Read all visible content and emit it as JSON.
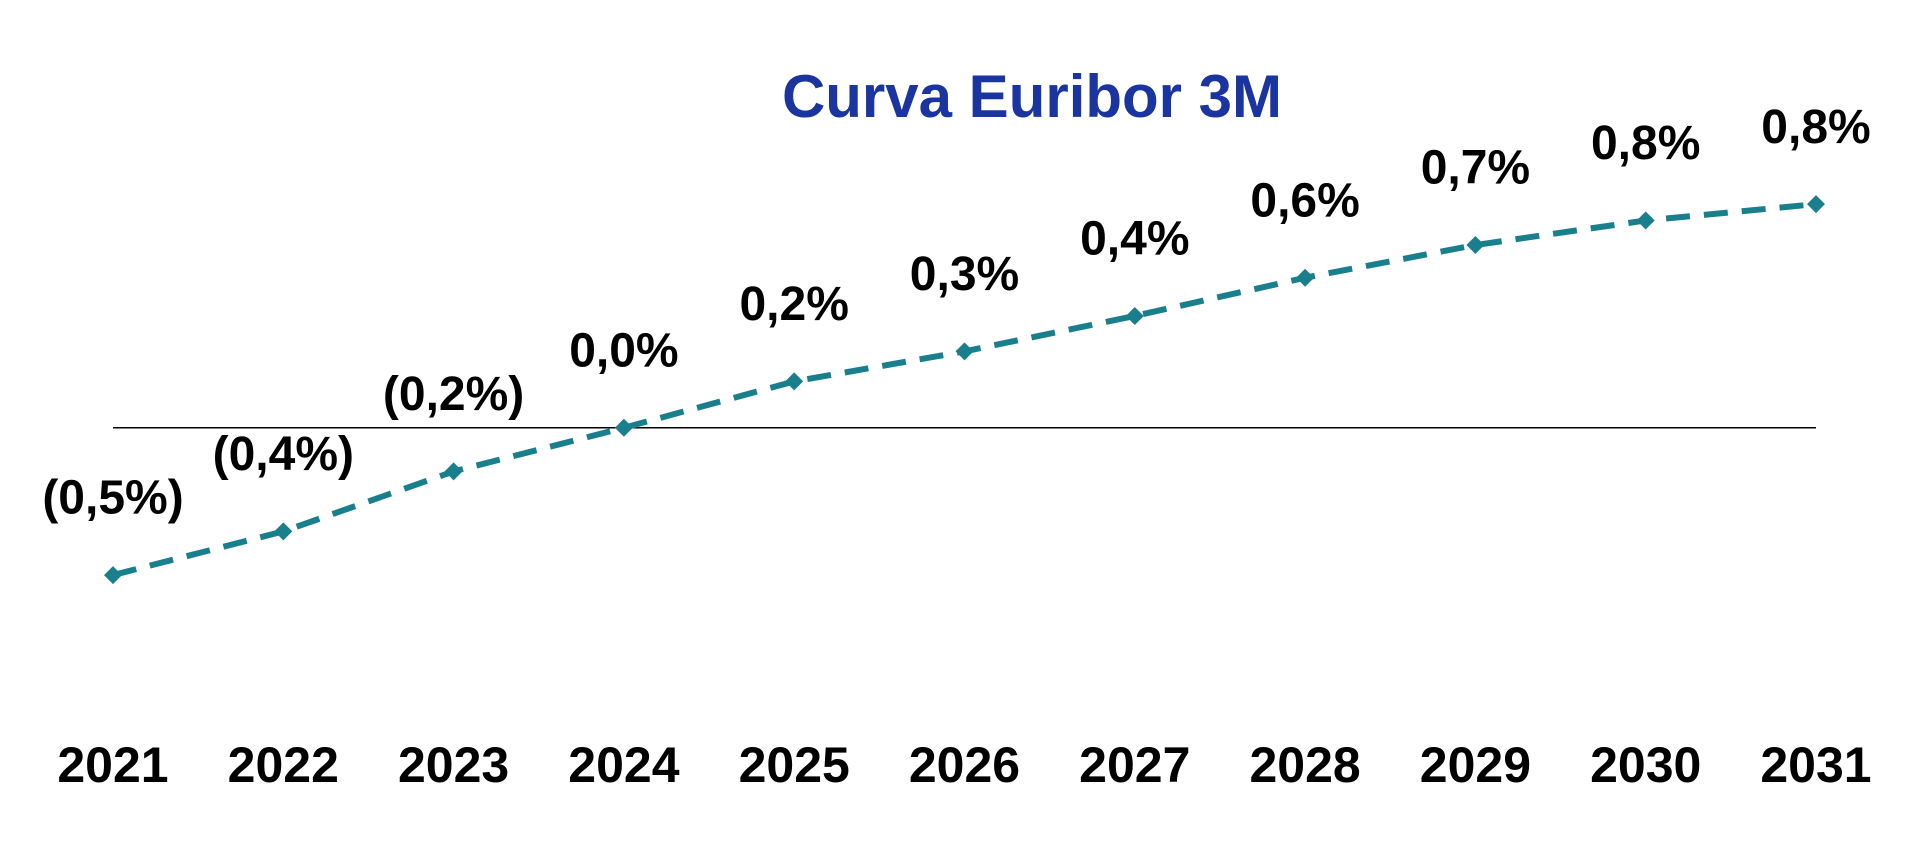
{
  "chart_data": {
    "type": "line",
    "title": "Curva Euribor 3M",
    "categories": [
      "2021",
      "2022",
      "2023",
      "2024",
      "2025",
      "2026",
      "2027",
      "2028",
      "2029",
      "2030",
      "2031"
    ],
    "series": [
      {
        "name": "Euribor 3M",
        "color": "#1a7f8c",
        "values": [
          -0.54,
          -0.38,
          -0.16,
          0.0,
          0.17,
          0.28,
          0.41,
          0.55,
          0.67,
          0.76,
          0.82
        ],
        "value_labels": [
          "(0,5%)",
          "(0,4%)",
          "(0,2%)",
          "0,0%",
          "0,2%",
          "0,3%",
          "0,4%",
          "0,6%",
          "0,7%",
          "0,8%",
          "0,8%"
        ]
      }
    ],
    "ylim": [
      -0.8,
      1.0
    ],
    "title_color": "#1a35a0",
    "legend": false
  }
}
